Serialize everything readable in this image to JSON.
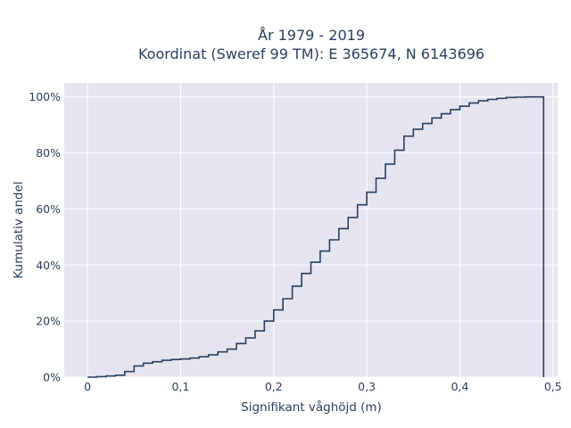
{
  "chart_data": {
    "type": "line",
    "line_shape": "step",
    "title_lines": [
      "År 1979 - 2019",
      "Koordinat (Sweref 99 TM): E 365674, N 6143696"
    ],
    "xlabel": "Signifikant våghöjd (m)",
    "ylabel": "Kumulativ andel",
    "xlim": [
      -0.025,
      0.505
    ],
    "ylim": [
      0,
      1.05
    ],
    "x_ticks": [
      0,
      0.1,
      0.2,
      0.3,
      0.4,
      0.5
    ],
    "x_tick_labels": [
      "0",
      "0,1",
      "0,2",
      "0,3",
      "0,4",
      "0,5"
    ],
    "y_ticks": [
      0,
      0.2,
      0.4,
      0.6,
      0.8,
      1.0
    ],
    "y_tick_labels": [
      "0%",
      "20%",
      "40%",
      "60%",
      "80%",
      "100%"
    ],
    "grid": true,
    "colors": {
      "plot_bg": "#e5e5ef",
      "grid": "#ffffff",
      "line": "#2a3f5f",
      "text": "#2a3f5f"
    },
    "series": [
      {
        "x": [
          0,
          0.01,
          0.02,
          0.03,
          0.04,
          0.05,
          0.06,
          0.07,
          0.08,
          0.09,
          0.1,
          0.11,
          0.12,
          0.13,
          0.14,
          0.15,
          0.16,
          0.17,
          0.18,
          0.19,
          0.2,
          0.21,
          0.22,
          0.23,
          0.24,
          0.25,
          0.26,
          0.27,
          0.28,
          0.29,
          0.3,
          0.31,
          0.32,
          0.33,
          0.34,
          0.35,
          0.36,
          0.37,
          0.38,
          0.39,
          0.4,
          0.41,
          0.42,
          0.43,
          0.44,
          0.45,
          0.46,
          0.47,
          0.48,
          0.49
        ],
        "y": [
          0,
          0.002,
          0.004,
          0.007,
          0.02,
          0.04,
          0.05,
          0.055,
          0.06,
          0.063,
          0.065,
          0.068,
          0.073,
          0.08,
          0.09,
          0.1,
          0.12,
          0.14,
          0.165,
          0.2,
          0.24,
          0.28,
          0.325,
          0.37,
          0.41,
          0.45,
          0.49,
          0.53,
          0.57,
          0.615,
          0.66,
          0.71,
          0.76,
          0.81,
          0.86,
          0.885,
          0.905,
          0.925,
          0.94,
          0.955,
          0.967,
          0.978,
          0.986,
          0.991,
          0.995,
          0.998,
          0.999,
          1.0,
          1.0,
          0
        ]
      }
    ]
  }
}
